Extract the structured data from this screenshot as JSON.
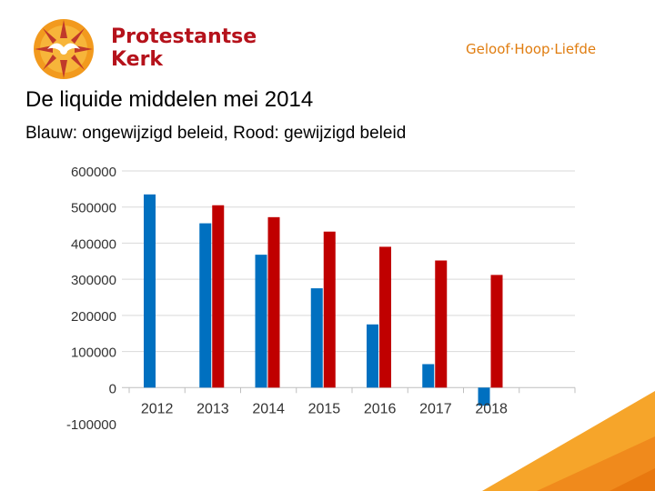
{
  "header": {
    "brand_line1": "Protestantse",
    "brand_line2": "Kerk",
    "tagline": "Geloof·Hoop·Liefde",
    "accent_red": "#b5121b",
    "accent_orange": "#f0a020"
  },
  "slide": {
    "title": "De liquide middelen mei 2014",
    "subtitle": "Blauw: ongewijzigd beleid, Rood: gewijzigd beleid"
  },
  "chart_data": {
    "type": "bar",
    "categories": [
      "2012",
      "2013",
      "2014",
      "2015",
      "2016",
      "2017",
      "2018"
    ],
    "series": [
      {
        "name": "ongewijzigd beleid",
        "color": "#0070c0",
        "values": [
          535000,
          455000,
          368000,
          275000,
          175000,
          65000,
          -50000
        ]
      },
      {
        "name": "gewijzigd beleid",
        "color": "#c00000",
        "values": [
          null,
          505000,
          472000,
          432000,
          390000,
          352000,
          312000
        ]
      }
    ],
    "ylim": [
      -100000,
      600000
    ],
    "yticks": [
      "600000",
      "500000",
      "400000",
      "300000",
      "200000",
      "100000",
      "0",
      "-100000"
    ],
    "ytick_values": [
      600000,
      500000,
      400000,
      300000,
      200000,
      100000,
      0,
      -100000
    ],
    "grid": true,
    "title": "",
    "xlabel": "",
    "ylabel": ""
  }
}
